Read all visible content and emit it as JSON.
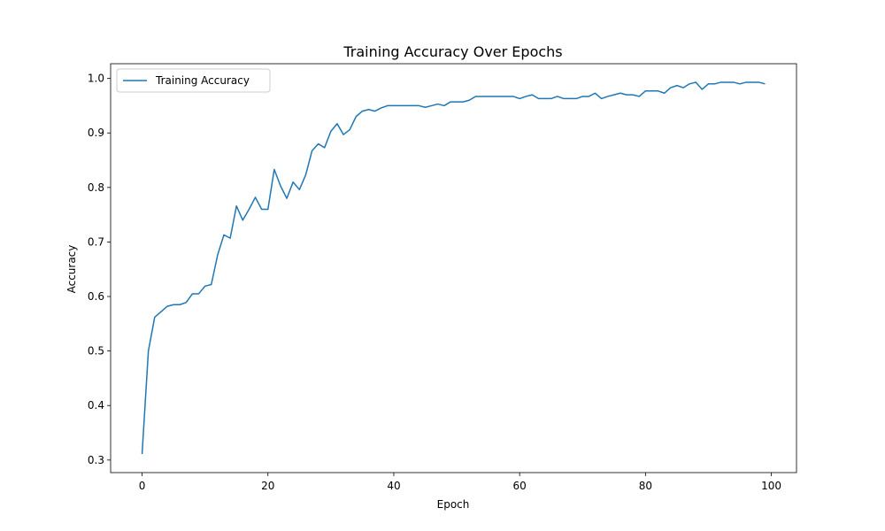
{
  "chart_data": {
    "type": "line",
    "title": "Training Accuracy Over Epochs",
    "xlabel": "Epoch",
    "ylabel": "Accuracy",
    "xlim": [
      -5,
      104
    ],
    "ylim": [
      0.277,
      1.027
    ],
    "xticks": [
      0,
      20,
      40,
      60,
      80,
      100
    ],
    "yticks": [
      0.3,
      0.4,
      0.5,
      0.6,
      0.7,
      0.8,
      0.9,
      1.0
    ],
    "xtick_labels": [
      "0",
      "20",
      "40",
      "60",
      "80",
      "100"
    ],
    "ytick_labels": [
      "0.3",
      "0.4",
      "0.5",
      "0.6",
      "0.7",
      "0.8",
      "0.9",
      "1.0"
    ],
    "grid": false,
    "legend_position": "top-left",
    "series": [
      {
        "name": "Training Accuracy",
        "color": "#1f77b4",
        "x": [
          0,
          1,
          2,
          3,
          4,
          5,
          6,
          7,
          8,
          9,
          10,
          11,
          12,
          13,
          14,
          15,
          16,
          17,
          18,
          19,
          20,
          21,
          22,
          23,
          24,
          25,
          26,
          27,
          28,
          29,
          30,
          31,
          32,
          33,
          34,
          35,
          36,
          37,
          38,
          39,
          40,
          41,
          42,
          43,
          44,
          45,
          46,
          47,
          48,
          49,
          50,
          51,
          52,
          53,
          54,
          55,
          56,
          57,
          58,
          59,
          60,
          61,
          62,
          63,
          64,
          65,
          66,
          67,
          68,
          69,
          70,
          71,
          72,
          73,
          74,
          75,
          76,
          77,
          78,
          79,
          80,
          81,
          82,
          83,
          84,
          85,
          86,
          87,
          88,
          89,
          90,
          91,
          92,
          93,
          94,
          95,
          96,
          97,
          98,
          99
        ],
        "values": [
          0.311,
          0.5,
          0.562,
          0.572,
          0.582,
          0.585,
          0.585,
          0.589,
          0.605,
          0.605,
          0.619,
          0.622,
          0.676,
          0.713,
          0.707,
          0.766,
          0.74,
          0.76,
          0.782,
          0.76,
          0.76,
          0.833,
          0.803,
          0.78,
          0.81,
          0.796,
          0.823,
          0.867,
          0.88,
          0.873,
          0.903,
          0.917,
          0.897,
          0.906,
          0.93,
          0.94,
          0.943,
          0.94,
          0.946,
          0.95,
          0.95,
          0.95,
          0.95,
          0.95,
          0.95,
          0.947,
          0.95,
          0.953,
          0.95,
          0.957,
          0.957,
          0.957,
          0.96,
          0.967,
          0.967,
          0.967,
          0.967,
          0.967,
          0.967,
          0.967,
          0.963,
          0.967,
          0.97,
          0.963,
          0.963,
          0.963,
          0.967,
          0.963,
          0.963,
          0.963,
          0.967,
          0.967,
          0.973,
          0.963,
          0.967,
          0.97,
          0.973,
          0.97,
          0.97,
          0.967,
          0.977,
          0.977,
          0.977,
          0.973,
          0.983,
          0.987,
          0.983,
          0.99,
          0.993,
          0.98,
          0.99,
          0.99,
          0.993,
          0.993,
          0.993,
          0.99,
          0.993,
          0.993,
          0.993,
          0.99
        ]
      }
    ]
  }
}
